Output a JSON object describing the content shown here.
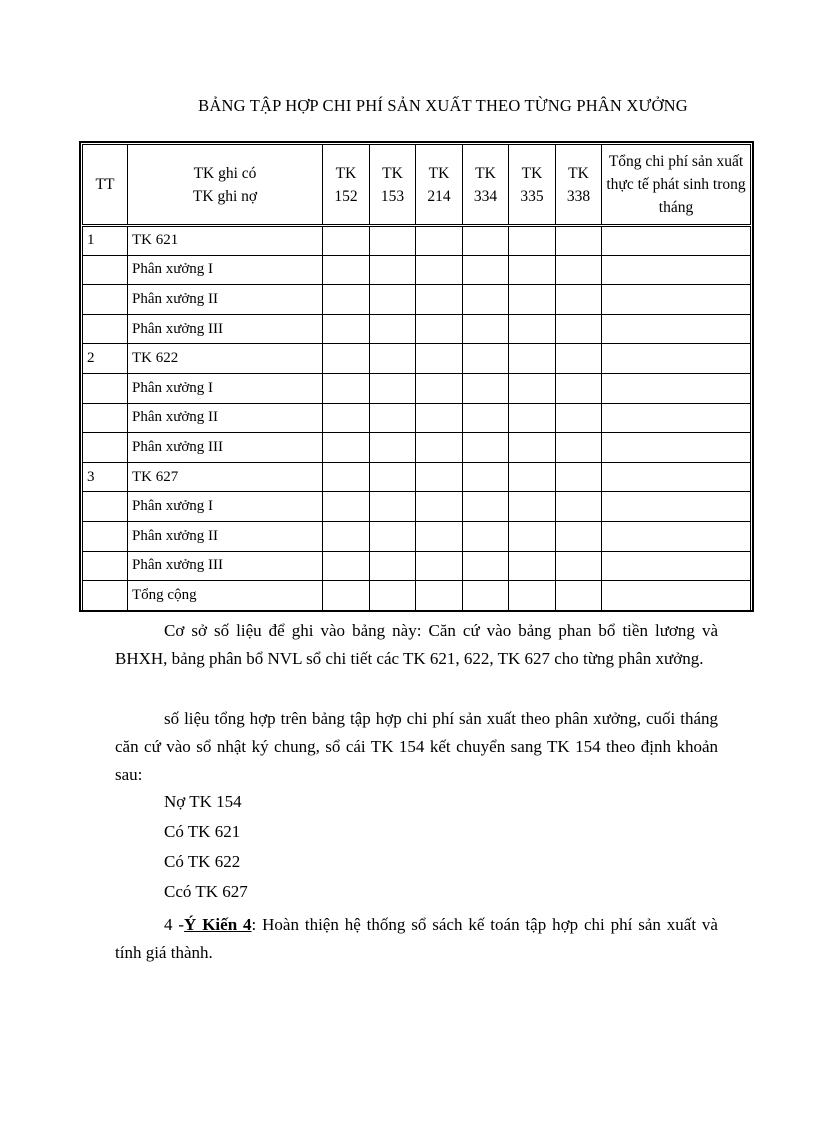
{
  "title": "BẢNG TẬP HỢP CHI PHÍ SẢN XUẤT THEO TỪNG PHÂN XƯỞNG",
  "table": {
    "headers": {
      "tt": "TT",
      "desc_line1": "TK ghi có",
      "desc_line2": "TK ghi nợ",
      "accounts": [
        {
          "l1": "TK",
          "l2": "152"
        },
        {
          "l1": "TK",
          "l2": "153"
        },
        {
          "l1": "TK",
          "l2": "214"
        },
        {
          "l1": "TK",
          "l2": "334"
        },
        {
          "l1": "TK",
          "l2": "335"
        },
        {
          "l1": "TK",
          "l2": "338"
        }
      ],
      "total": "Tổng chi phí sản xuất thực tế phát sinh trong tháng"
    },
    "rows": [
      {
        "tt": "1",
        "desc": "TK 621"
      },
      {
        "tt": "",
        "desc": "Phân xưởng I"
      },
      {
        "tt": "",
        "desc": "Phân xưởng II"
      },
      {
        "tt": "",
        "desc": "Phân xưởng III"
      },
      {
        "tt": "2",
        "desc": "TK 622"
      },
      {
        "tt": "",
        "desc": "Phân xưởng I"
      },
      {
        "tt": "",
        "desc": "Phân xưởng II"
      },
      {
        "tt": "",
        "desc": "Phân xưởng III"
      },
      {
        "tt": "3",
        "desc": "TK 627"
      },
      {
        "tt": "",
        "desc": "Phân xưởng I"
      },
      {
        "tt": "",
        "desc": "Phân xưởng II"
      },
      {
        "tt": "",
        "desc": "Phân xưởng III"
      },
      {
        "tt": "",
        "desc": "Tổng cộng"
      }
    ]
  },
  "paragraphs": {
    "p1": "Cơ sở số liệu  để ghi vào bảng này: Căn cứ vào bảng phan bổ tiền lương và BHXH, bảng phân bổ NVL sổ chi tiết các TK 621, 622, TK 627  cho từng phân xưởng.",
    "p2": "số liệu  tổng hợp trên bảng tập hợp chi phí sản xuất theo phân xưởng, cuối tháng căn cứ vào sổ nhật ký chung, sổ cái TK 154 kết chuyển sang TK 154 theo định khoản sau:",
    "entries": [
      "Nợ TK 154",
      "Có TK 621",
      "Có TK 622",
      "Ccó TK 627"
    ],
    "p3_prefix": "4 -",
    "p3_heading": "Ý Kiến 4",
    "p3_text": ": Hoàn thiện hệ thống sổ sách kế toán tập hợp chi phí sản xuất và tính giá thành."
  }
}
